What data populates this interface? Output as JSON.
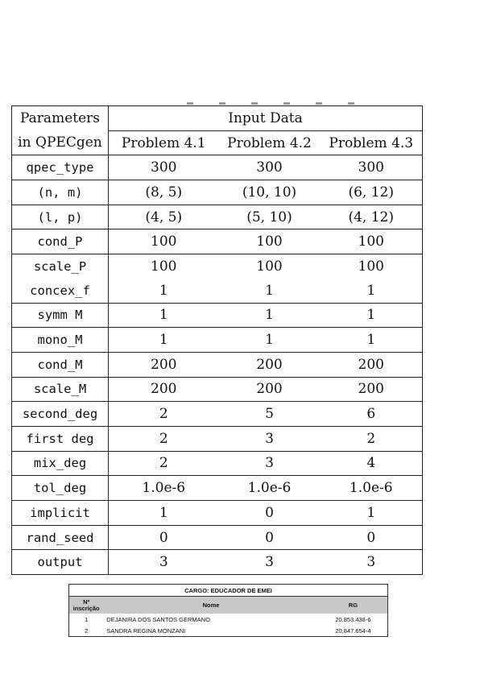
{
  "params_table": {
    "header": {
      "param_line1": "Parameters",
      "param_line2": "in QPECgen",
      "group_label": "Input Data",
      "problems": [
        "Problem 4.1",
        "Problem 4.2",
        "Problem 4.3"
      ]
    },
    "rows": [
      {
        "param": "qpec_type",
        "values": [
          "300",
          "300",
          "300"
        ]
      },
      {
        "param": "(n, m)",
        "values": [
          "(8, 5)",
          "(10, 10)",
          "(6, 12)"
        ]
      },
      {
        "param": "(l, p)",
        "values": [
          "(4, 5)",
          "(5, 10)",
          "(4, 12)"
        ]
      },
      {
        "param": "cond_P",
        "values": [
          "100",
          "100",
          "100"
        ]
      },
      {
        "param": "scale_P",
        "values": [
          "100",
          "100",
          "100"
        ]
      },
      {
        "param": "concex_f",
        "values": [
          "1",
          "1",
          "1"
        ]
      },
      {
        "param": "symm M",
        "values": [
          "1",
          "1",
          "1"
        ]
      },
      {
        "param": "mono_M",
        "values": [
          "1",
          "1",
          "1"
        ]
      },
      {
        "param": "cond_M",
        "values": [
          "200",
          "200",
          "200"
        ]
      },
      {
        "param": "scale_M",
        "values": [
          "200",
          "200",
          "200"
        ]
      },
      {
        "param": "second_deg",
        "values": [
          "2",
          "5",
          "6"
        ]
      },
      {
        "param": "first deg",
        "values": [
          "2",
          "3",
          "2"
        ]
      },
      {
        "param": "mix_deg",
        "values": [
          "2",
          "3",
          "4"
        ]
      },
      {
        "param": "tol_deg",
        "values": [
          "1.0e-6",
          "1.0e-6",
          "1.0e-6"
        ]
      },
      {
        "param": "implicit",
        "values": [
          "1",
          "0",
          "1"
        ]
      },
      {
        "param": "rand_seed",
        "values": [
          "0",
          "0",
          "0"
        ]
      },
      {
        "param": "output",
        "values": [
          "3",
          "3",
          "3"
        ]
      }
    ]
  },
  "listing": {
    "cargo": "CARGO: EDUCADOR DE EMEI",
    "headers": {
      "num_line1": "Nº",
      "num_line2": "inscrição",
      "name": "Nome",
      "rg": "RG"
    },
    "rows": [
      {
        "num": "1",
        "name": "DEJANIRA DOS SANTOS GERMANO",
        "rg": "20.853.438-6"
      },
      {
        "num": "2",
        "name": "SANDRA REGINA MONZANI",
        "rg": "20.847.654-4"
      }
    ]
  }
}
